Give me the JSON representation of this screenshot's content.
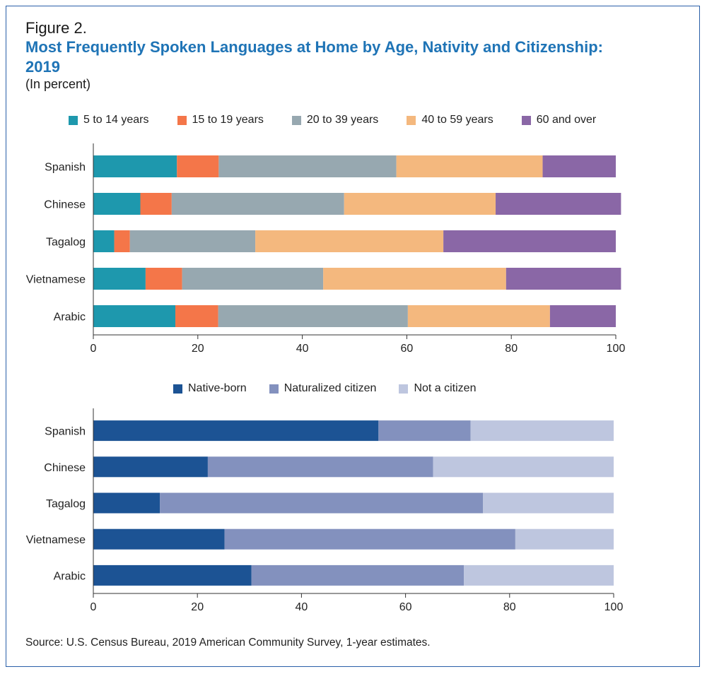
{
  "figure": {
    "label": "Figure 2.",
    "title": "Most Frequently Spoken Languages at Home by Age, Nativity and Citizenship: 2019",
    "subtitle": "(In percent)",
    "source": "Source: U.S. Census Bureau, 2019 American Community Survey, 1-year estimates."
  },
  "chart_data": [
    {
      "type": "bar",
      "orientation": "horizontal",
      "stacked": true,
      "categories": [
        "Spanish",
        "Chinese",
        "Tagalog",
        "Vietnamese",
        "Arabic"
      ],
      "series": [
        {
          "name": "5 to 14 years",
          "color": "#1e98ad",
          "values": [
            16,
            9,
            4,
            10,
            15.7
          ]
        },
        {
          "name": "15 to 19 years",
          "color": "#f47649",
          "values": [
            8,
            6,
            3,
            7,
            8.2
          ]
        },
        {
          "name": "20 to 39 years",
          "color": "#97a8b0",
          "values": [
            34,
            33,
            24,
            27,
            36.3
          ]
        },
        {
          "name": "40 to 59 years",
          "color": "#f4b87e",
          "values": [
            28,
            29,
            36,
            35,
            27.2
          ]
        },
        {
          "name": "60 and over",
          "color": "#8a67a6",
          "values": [
            14,
            24,
            33,
            22,
            12.6
          ]
        }
      ],
      "xlim": [
        0,
        100
      ],
      "xticks": [
        "0",
        "20",
        "40",
        "60",
        "80",
        "100"
      ],
      "legend_position": "top",
      "grid": false
    },
    {
      "type": "bar",
      "orientation": "horizontal",
      "stacked": true,
      "categories": [
        "Spanish",
        "Chinese",
        "Tagalog",
        "Vietnamese",
        "Arabic"
      ],
      "series": [
        {
          "name": "Native-born",
          "color": "#1c5394",
          "values": [
            54.8,
            22,
            12.8,
            25.2,
            30.4
          ]
        },
        {
          "name": "Naturalized citizen",
          "color": "#8391be",
          "values": [
            17.7,
            43.3,
            62.1,
            55.9,
            40.8
          ]
        },
        {
          "name": "Not a citizen",
          "color": "#bec6df",
          "values": [
            27.5,
            34.7,
            25.1,
            18.9,
            28.8
          ]
        }
      ],
      "xlim": [
        0,
        100
      ],
      "xticks": [
        "0",
        "20",
        "40",
        "60",
        "80",
        "100"
      ],
      "legend_position": "top",
      "grid": false
    }
  ]
}
